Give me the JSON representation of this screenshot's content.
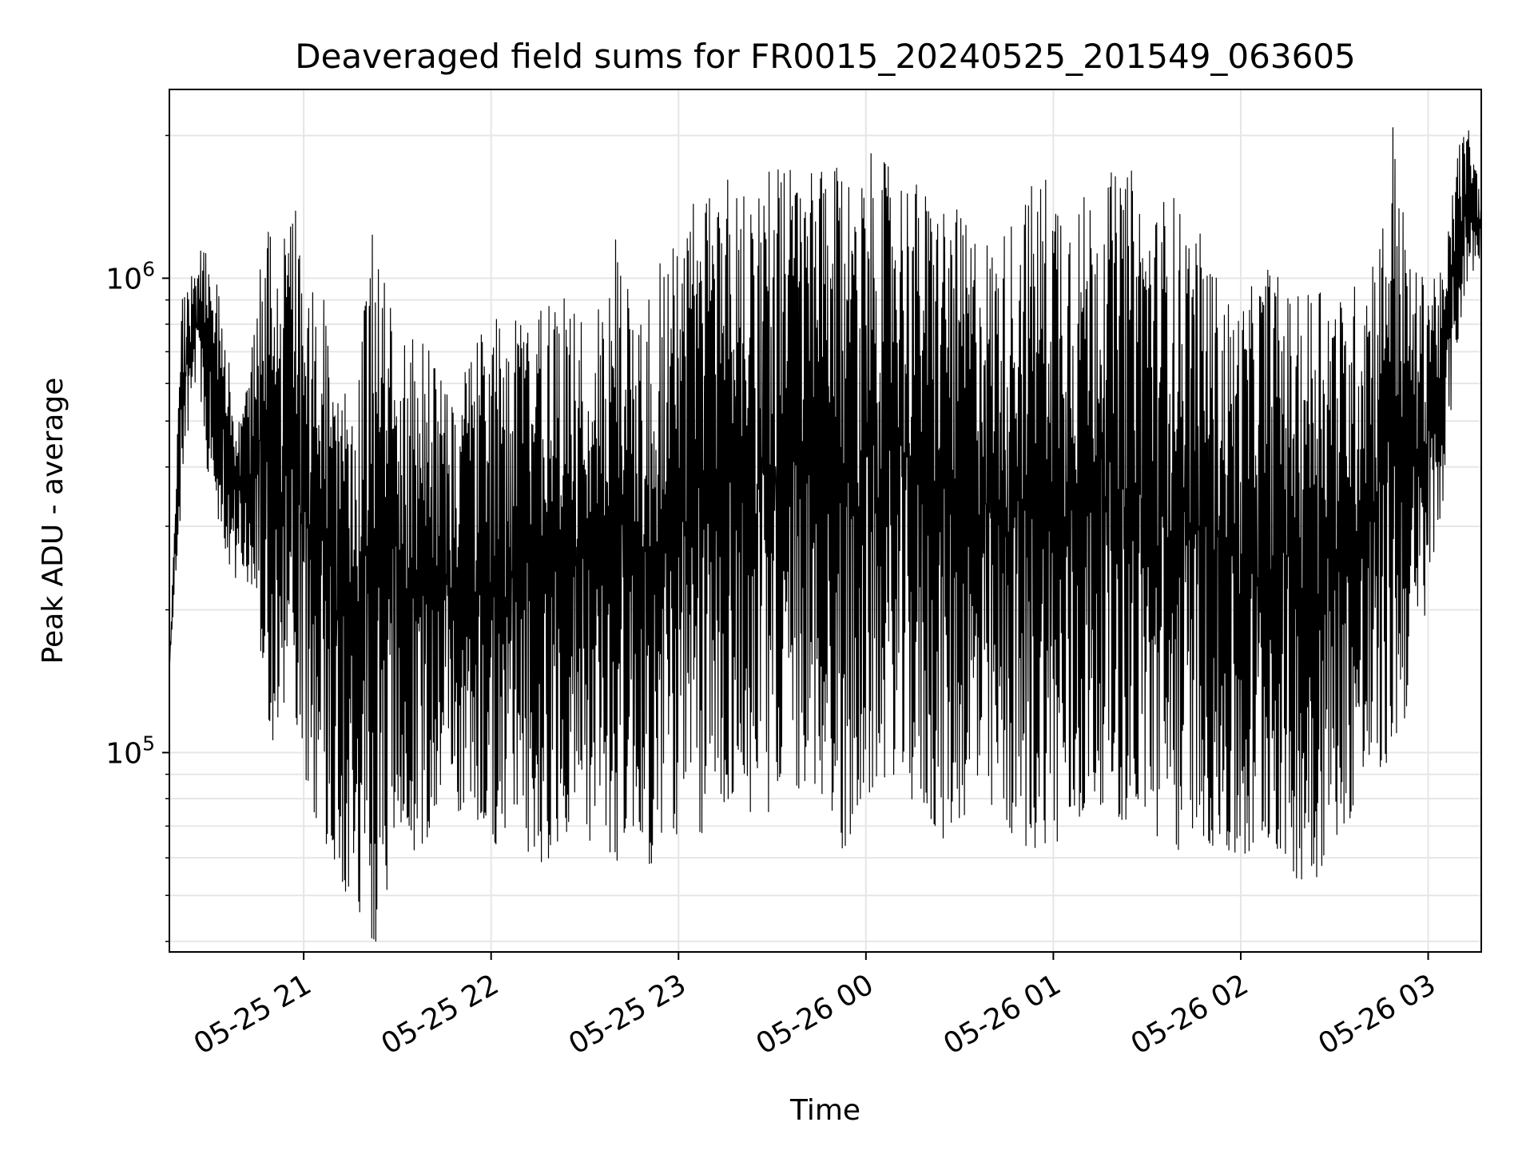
{
  "chart_data": {
    "type": "line",
    "title": "Deaveraged field sums for FR0015_20240525_201549_063605",
    "xlabel": "Time",
    "ylabel": "Peak ADU - average",
    "yscale": "log",
    "ylim": [
      38000,
      2500000
    ],
    "xlim": [
      "2024-05-25 20:17",
      "2024-05-26 03:17"
    ],
    "x_ticks": [
      {
        "label": "05-25 21",
        "time": "2024-05-25 21:00"
      },
      {
        "label": "05-25 22",
        "time": "2024-05-25 22:00"
      },
      {
        "label": "05-25 23",
        "time": "2024-05-25 23:00"
      },
      {
        "label": "05-26 00",
        "time": "2024-05-26 00:00"
      },
      {
        "label": "05-26 01",
        "time": "2024-05-26 01:00"
      },
      {
        "label": "05-26 02",
        "time": "2024-05-26 02:00"
      },
      {
        "label": "05-26 03",
        "time": "2024-05-26 03:00"
      }
    ],
    "y_ticks": [
      {
        "base": "10",
        "exp": "5",
        "value": 100000
      },
      {
        "base": "10",
        "exp": "6",
        "value": 1000000
      }
    ],
    "grid": true,
    "line_color": "#000000",
    "series": [
      {
        "x": [
          "2024-05-25 20:17",
          "2024-05-25 20:21",
          "2024-05-25 20:25",
          "2024-05-25 20:29",
          "2024-05-25 20:33",
          "2024-05-25 20:37",
          "2024-05-25 20:41",
          "2024-05-25 20:45",
          "2024-05-25 20:49",
          "2024-05-25 20:53",
          "2024-05-25 20:57",
          "2024-05-25 21:01",
          "2024-05-25 21:05",
          "2024-05-25 21:09",
          "2024-05-25 21:13",
          "2024-05-25 21:17",
          "2024-05-25 21:21",
          "2024-05-25 21:25",
          "2024-05-25 21:29",
          "2024-05-25 21:33",
          "2024-05-25 21:37",
          "2024-05-25 21:41",
          "2024-05-25 21:45",
          "2024-05-25 21:49",
          "2024-05-25 21:53",
          "2024-05-25 21:57",
          "2024-05-25 22:01",
          "2024-05-25 22:05",
          "2024-05-25 22:09",
          "2024-05-25 22:13",
          "2024-05-25 22:17",
          "2024-05-25 22:21",
          "2024-05-25 22:25",
          "2024-05-25 22:29",
          "2024-05-25 22:33",
          "2024-05-25 22:37",
          "2024-05-25 22:41",
          "2024-05-25 22:45",
          "2024-05-25 22:49",
          "2024-05-25 22:53",
          "2024-05-25 22:57",
          "2024-05-25 23:01",
          "2024-05-25 23:05",
          "2024-05-25 23:09",
          "2024-05-25 23:13",
          "2024-05-25 23:17",
          "2024-05-25 23:21",
          "2024-05-25 23:25",
          "2024-05-25 23:29",
          "2024-05-25 23:33",
          "2024-05-25 23:37",
          "2024-05-25 23:41",
          "2024-05-25 23:45",
          "2024-05-25 23:49",
          "2024-05-25 23:53",
          "2024-05-25 23:57",
          "2024-05-26 00:01",
          "2024-05-26 00:05",
          "2024-05-26 00:09",
          "2024-05-26 00:13",
          "2024-05-26 00:17",
          "2024-05-26 00:21",
          "2024-05-26 00:25",
          "2024-05-26 00:29",
          "2024-05-26 00:33",
          "2024-05-26 00:37",
          "2024-05-26 00:41",
          "2024-05-26 00:45",
          "2024-05-26 00:49",
          "2024-05-26 00:53",
          "2024-05-26 00:57",
          "2024-05-26 01:01",
          "2024-05-26 01:05",
          "2024-05-26 01:09",
          "2024-05-26 01:13",
          "2024-05-26 01:17",
          "2024-05-26 01:21",
          "2024-05-26 01:25",
          "2024-05-26 01:29",
          "2024-05-26 01:33",
          "2024-05-26 01:37",
          "2024-05-26 01:41",
          "2024-05-26 01:45",
          "2024-05-26 01:49",
          "2024-05-26 01:53",
          "2024-05-26 01:57",
          "2024-05-26 02:01",
          "2024-05-26 02:05",
          "2024-05-26 02:09",
          "2024-05-26 02:13",
          "2024-05-26 02:17",
          "2024-05-26 02:21",
          "2024-05-26 02:25",
          "2024-05-26 02:29",
          "2024-05-26 02:33",
          "2024-05-26 02:37",
          "2024-05-26 02:41",
          "2024-05-26 02:45",
          "2024-05-26 02:49",
          "2024-05-26 02:53",
          "2024-05-26 02:57",
          "2024-05-26 03:01",
          "2024-05-26 03:05",
          "2024-05-26 03:09",
          "2024-05-26 03:13",
          "2024-05-26 03:17"
        ],
        "y_max": [
          150000,
          900000,
          1100000,
          1200000,
          950000,
          600000,
          550000,
          1000000,
          1300000,
          1200000,
          1500000,
          950000,
          1000000,
          800000,
          700000,
          750000,
          1400000,
          1000000,
          900000,
          800000,
          750000,
          700000,
          650000,
          550000,
          700000,
          800000,
          850000,
          700000,
          900000,
          800000,
          900000,
          1000000,
          900000,
          950000,
          800000,
          1050000,
          1300000,
          1000000,
          900000,
          1100000,
          1200000,
          1300000,
          1500000,
          1600000,
          1700000,
          1750000,
          1500000,
          1700000,
          1750000,
          1800000,
          1750000,
          1700000,
          1700000,
          1650000,
          1800000,
          1750000,
          1850000,
          1750000,
          1800000,
          1700000,
          1600000,
          1500000,
          1500000,
          1400000,
          1300000,
          1300000,
          1200000,
          1300000,
          1500000,
          1600000,
          1700000,
          1700000,
          1600000,
          1500000,
          1600000,
          1700000,
          1650000,
          1700000,
          1500000,
          1400000,
          1600000,
          1400000,
          1300000,
          1200000,
          1000000,
          900000,
          900000,
          1000000,
          1100000,
          1000000,
          900000,
          950000,
          1100000,
          1000000,
          900000,
          1000000,
          1200000,
          1300000,
          2300000,
          1200000,
          1000000,
          1100000,
          1000000,
          1900000,
          2100000,
          1500000
        ],
        "y_min": [
          150000,
          350000,
          600000,
          400000,
          300000,
          230000,
          240000,
          200000,
          100000,
          110000,
          120000,
          80000,
          70000,
          60000,
          50000,
          45000,
          40000,
          40000,
          70000,
          65000,
          60000,
          70000,
          80000,
          75000,
          70000,
          65000,
          60000,
          65000,
          60000,
          62000,
          58000,
          60000,
          70000,
          65000,
          60000,
          63000,
          58000,
          70000,
          60000,
          55000,
          70000,
          65000,
          60000,
          70000,
          75000,
          80000,
          75000,
          70000,
          75000,
          80000,
          85000,
          80000,
          82000,
          70000,
          60000,
          75000,
          80000,
          85000,
          90000,
          80000,
          75000,
          70000,
          65000,
          70000,
          75000,
          72000,
          70000,
          68000,
          65000,
          60000,
          65000,
          60000,
          62000,
          70000,
          75000,
          80000,
          72000,
          70000,
          75000,
          65000,
          60000,
          62000,
          70000,
          65000,
          60000,
          58000,
          55000,
          60000,
          65000,
          60000,
          55000,
          52000,
          55000,
          65000,
          70000,
          75000,
          80000,
          90000,
          100000,
          120000,
          160000,
          230000,
          350000,
          700000,
          1000000,
          1100000
        ]
      }
    ]
  }
}
